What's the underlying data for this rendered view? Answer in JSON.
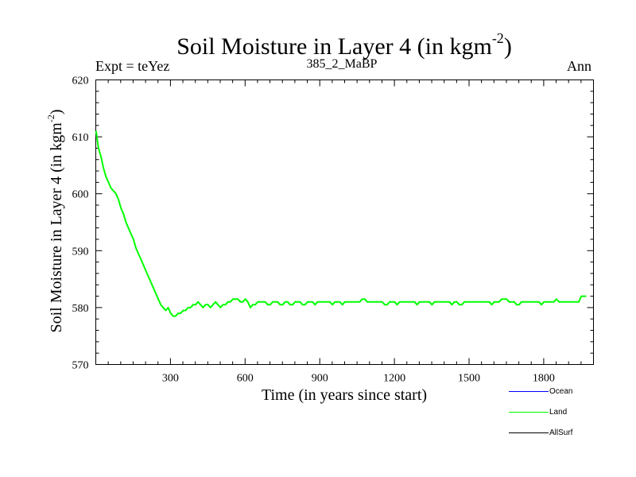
{
  "header": {
    "title_main": "Soil Moisture in Layer 4 (in kgm",
    "title_sup": "-2",
    "title_end": ")",
    "expt": "Expt = teYez",
    "subtitle": "385_2_MaBP",
    "season": "Ann"
  },
  "chart_data": {
    "type": "line",
    "title": "Soil Moisture in Layer 4 (in kgm-2)",
    "xlabel": "Time (in years since start)",
    "ylabel_main": "Soil Moisture in Layer 4 (in kgm",
    "ylabel_sup": "-2",
    "ylabel_end": ")",
    "xlim": [
      0,
      2000
    ],
    "ylim": [
      570,
      620
    ],
    "x_ticks": [
      300,
      600,
      900,
      1200,
      1500,
      1800
    ],
    "y_ticks": [
      570,
      580,
      590,
      600,
      610,
      620
    ],
    "x_tick_labels": [
      "300",
      "600",
      "900",
      "1200",
      "1500",
      "1800"
    ],
    "y_tick_labels": [
      "570",
      "580",
      "590",
      "600",
      "610",
      "620"
    ],
    "grid": false,
    "legend_position": "bottom-right",
    "legend": [
      {
        "name": "Ocean",
        "color": "#0000ff"
      },
      {
        "name": "Land",
        "color": "#00ff00"
      },
      {
        "name": "AllSurf",
        "color": "#000000"
      }
    ],
    "series": [
      {
        "name": "Land",
        "color": "#00ff00",
        "x_start": 1,
        "x_step": 10,
        "values": [
          611,
          608,
          606.5,
          604.5,
          603,
          602,
          601,
          600.5,
          600,
          599,
          597.5,
          596.5,
          595,
          594,
          593,
          592,
          590.5,
          589.5,
          588.5,
          587.5,
          586.5,
          585.5,
          584.5,
          583.5,
          582.5,
          581.5,
          580.5,
          580,
          579.5,
          580,
          579,
          578.5,
          578.5,
          579,
          579,
          579.5,
          579.5,
          580,
          580,
          580.5,
          580.5,
          581,
          580.5,
          580,
          580.5,
          580.5,
          580,
          580.5,
          581,
          580.5,
          580,
          580.5,
          580.5,
          581,
          581,
          581.5,
          581.5,
          581.5,
          581,
          581,
          581.5,
          581,
          580,
          580.5,
          580.5,
          581,
          581,
          581,
          581,
          580.5,
          580.5,
          581,
          581,
          581,
          580.5,
          580.5,
          581,
          581,
          580.5,
          580.5,
          581,
          581,
          581,
          580.5,
          580.5,
          581,
          581,
          581,
          580.5,
          581,
          581,
          581,
          581,
          581,
          581,
          580.5,
          581,
          581,
          581,
          580.5,
          581,
          581,
          581,
          581,
          581,
          581,
          581,
          581.5,
          581.5,
          581,
          581,
          581,
          581,
          581,
          581,
          581,
          580.5,
          580.5,
          581,
          581,
          581,
          580.5,
          581,
          581,
          581,
          581,
          581,
          581,
          581,
          580.5,
          581,
          581,
          581,
          581,
          581,
          580.5,
          581,
          581,
          581,
          581,
          581,
          581,
          581,
          580.5,
          581,
          581,
          580.5,
          580.5,
          581,
          581,
          581,
          581,
          581,
          581,
          581,
          581,
          581,
          581,
          581,
          580.5,
          581,
          581,
          581,
          581.5,
          581.5,
          581.5,
          581,
          581,
          581,
          580.5,
          580.5,
          581,
          581,
          581,
          581,
          581,
          581,
          581,
          581,
          580.5,
          581,
          581,
          581,
          581,
          581,
          581.5,
          581,
          581,
          581,
          581,
          581,
          581,
          581,
          581,
          581,
          582,
          582,
          582
        ]
      }
    ]
  }
}
